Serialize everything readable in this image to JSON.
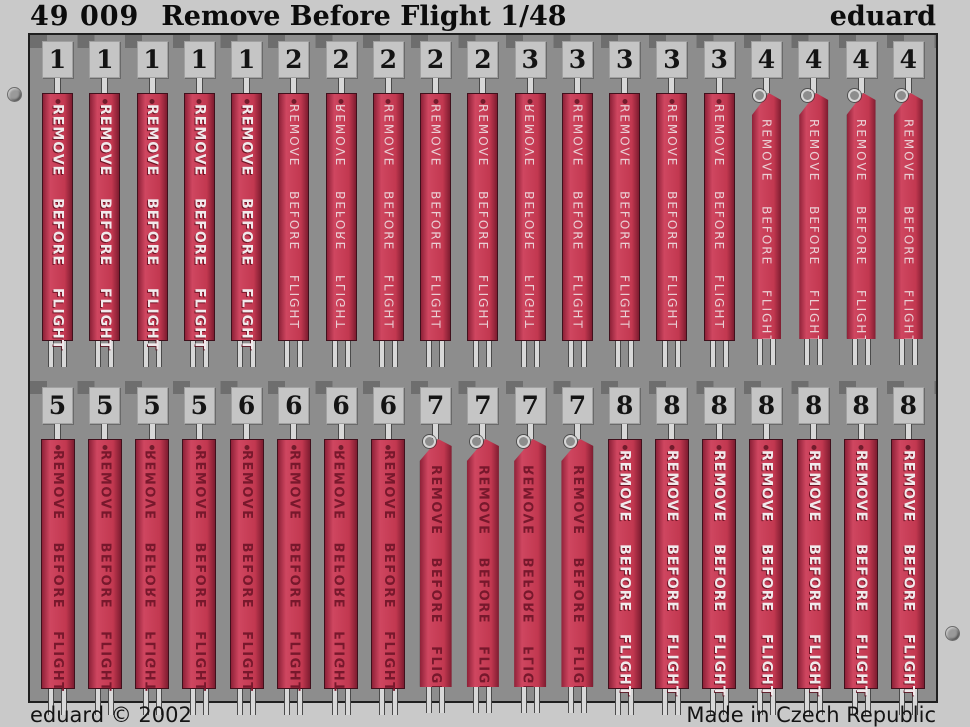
{
  "header": {
    "catalog_number": "49 009",
    "product_title": "Remove Before Flight 1/48",
    "brand": "eduard"
  },
  "footer": {
    "copyright": "eduard © 2002",
    "origin": "Made in Czech Republic"
  },
  "fret": {
    "flag_text": "REMOVE BEFORE FLIGHT",
    "colors": {
      "ribbon_red": "#c23850",
      "ribbon_edge_dark": "#7e1c30",
      "etched_dark_text": "#77182c",
      "etched_white_text": "#f1e9eb",
      "plate_gray": "#8d8d8d",
      "tab_gray": "#c5c5c5",
      "background_gray": "#c9c9c9"
    },
    "rows": [
      {
        "name": "top",
        "ribbons": [
          {
            "num": "1",
            "style": "bold-white",
            "shape": "rect",
            "mirrored": false
          },
          {
            "num": "1",
            "style": "bold-white",
            "shape": "rect",
            "mirrored": false
          },
          {
            "num": "1",
            "style": "bold-white",
            "shape": "rect",
            "mirrored": false
          },
          {
            "num": "1",
            "style": "bold-white",
            "shape": "rect",
            "mirrored": false
          },
          {
            "num": "1",
            "style": "bold-white",
            "shape": "rect",
            "mirrored": false
          },
          {
            "num": "2",
            "style": "thin-white",
            "shape": "rect",
            "mirrored": false
          },
          {
            "num": "2",
            "style": "thin-white",
            "shape": "rect",
            "mirrored": true
          },
          {
            "num": "2",
            "style": "thin-white",
            "shape": "rect",
            "mirrored": false
          },
          {
            "num": "2",
            "style": "thin-white",
            "shape": "rect",
            "mirrored": false
          },
          {
            "num": "2",
            "style": "thin-white",
            "shape": "rect",
            "mirrored": false
          },
          {
            "num": "3",
            "style": "thin-white",
            "shape": "rect",
            "mirrored": true
          },
          {
            "num": "3",
            "style": "thin-white",
            "shape": "rect",
            "mirrored": false
          },
          {
            "num": "3",
            "style": "thin-white",
            "shape": "rect",
            "mirrored": false
          },
          {
            "num": "3",
            "style": "thin-white",
            "shape": "rect",
            "mirrored": false
          },
          {
            "num": "3",
            "style": "thin-white",
            "shape": "rect",
            "mirrored": false
          },
          {
            "num": "4",
            "style": "thin-white",
            "shape": "pennant",
            "mirrored": false
          },
          {
            "num": "4",
            "style": "thin-white",
            "shape": "pennant",
            "mirrored": false
          },
          {
            "num": "4",
            "style": "thin-white",
            "shape": "pennant",
            "mirrored": false
          },
          {
            "num": "4",
            "style": "thin-white",
            "shape": "pennant",
            "mirrored": false
          }
        ]
      },
      {
        "name": "bottom",
        "ribbons": [
          {
            "num": "5",
            "style": "dark",
            "shape": "rect",
            "mirrored": false
          },
          {
            "num": "5",
            "style": "dark",
            "shape": "rect",
            "mirrored": false
          },
          {
            "num": "5",
            "style": "dark",
            "shape": "rect",
            "mirrored": true
          },
          {
            "num": "5",
            "style": "dark",
            "shape": "rect",
            "mirrored": false
          },
          {
            "num": "6",
            "style": "dark",
            "shape": "rect",
            "mirrored": false
          },
          {
            "num": "6",
            "style": "dark",
            "shape": "rect",
            "mirrored": false
          },
          {
            "num": "6",
            "style": "dark",
            "shape": "rect",
            "mirrored": true
          },
          {
            "num": "6",
            "style": "dark",
            "shape": "rect",
            "mirrored": false
          },
          {
            "num": "7",
            "style": "dark",
            "shape": "pennant",
            "mirrored": false
          },
          {
            "num": "7",
            "style": "dark",
            "shape": "pennant",
            "mirrored": false
          },
          {
            "num": "7",
            "style": "dark",
            "shape": "pennant",
            "mirrored": true
          },
          {
            "num": "7",
            "style": "dark",
            "shape": "pennant",
            "mirrored": false
          },
          {
            "num": "8",
            "style": "bold-white",
            "shape": "rect",
            "mirrored": false
          },
          {
            "num": "8",
            "style": "bold-white",
            "shape": "rect",
            "mirrored": false
          },
          {
            "num": "8",
            "style": "bold-white",
            "shape": "rect",
            "mirrored": false
          },
          {
            "num": "8",
            "style": "bold-white",
            "shape": "rect",
            "mirrored": false
          },
          {
            "num": "8",
            "style": "bold-white",
            "shape": "rect",
            "mirrored": false
          },
          {
            "num": "8",
            "style": "bold-white",
            "shape": "rect",
            "mirrored": false
          },
          {
            "num": "8",
            "style": "bold-white",
            "shape": "rect",
            "mirrored": false
          }
        ]
      }
    ]
  }
}
